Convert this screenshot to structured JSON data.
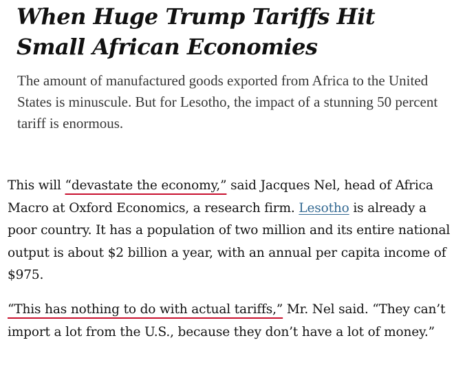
{
  "article": {
    "headline": "When Huge Trump Tariffs Hit Small African Economies",
    "summary": "The amount of manufactured goods exported from Africa to the United States is minuscule. But for Lesotho, the impact of a stunning 50 percent tariff is enormous.",
    "paragraph_1": {
      "text_1": "This will ",
      "quote_link": "“devastate the economy,”",
      "text_2": " said Jacques Nel, head of Africa Macro at Oxford Economics, a research firm. ",
      "place_link": "Lesotho",
      "text_3": " is already a poor country. It has a population of two million and its entire national output is about $2 billion a year, with an annual per capita income of $975."
    },
    "paragraph_2": {
      "quote_link": "“This has nothing to do with actual tariffs,”",
      "text_1": " Mr. Nel said. “They can’t import a lot from the U.S., because they don’t have a lot of money.”"
    }
  },
  "colors": {
    "quote_underline": "#c8102e",
    "link": "#326891",
    "text": "#121212",
    "summary_text": "#363636"
  }
}
